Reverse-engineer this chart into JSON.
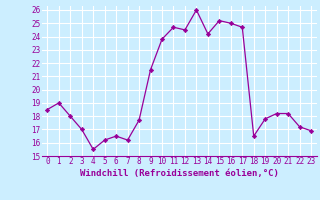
{
  "x": [
    0,
    1,
    2,
    3,
    4,
    5,
    6,
    7,
    8,
    9,
    10,
    11,
    12,
    13,
    14,
    15,
    16,
    17,
    18,
    19,
    20,
    21,
    22,
    23
  ],
  "y": [
    18.5,
    19.0,
    18.0,
    17.0,
    15.5,
    16.2,
    16.5,
    16.2,
    17.7,
    21.5,
    23.8,
    24.7,
    24.5,
    26.0,
    24.2,
    25.2,
    25.0,
    24.7,
    16.5,
    17.8,
    18.2,
    18.2,
    17.2,
    16.9
  ],
  "xlabel": "Windchill (Refroidissement éolien,°C)",
  "ylim": [
    15,
    26
  ],
  "xlim_min": -0.5,
  "xlim_max": 23.5,
  "yticks": [
    15,
    16,
    17,
    18,
    19,
    20,
    21,
    22,
    23,
    24,
    25,
    26
  ],
  "xticks": [
    0,
    1,
    2,
    3,
    4,
    5,
    6,
    7,
    8,
    9,
    10,
    11,
    12,
    13,
    14,
    15,
    16,
    17,
    18,
    19,
    20,
    21,
    22,
    23
  ],
  "line_color": "#990099",
  "marker_color": "#990099",
  "bg_color": "#cceeff",
  "grid_color": "#ffffff",
  "label_color": "#990099",
  "font_name": "monospace",
  "tick_fontsize": 5.5,
  "xlabel_fontsize": 6.5
}
